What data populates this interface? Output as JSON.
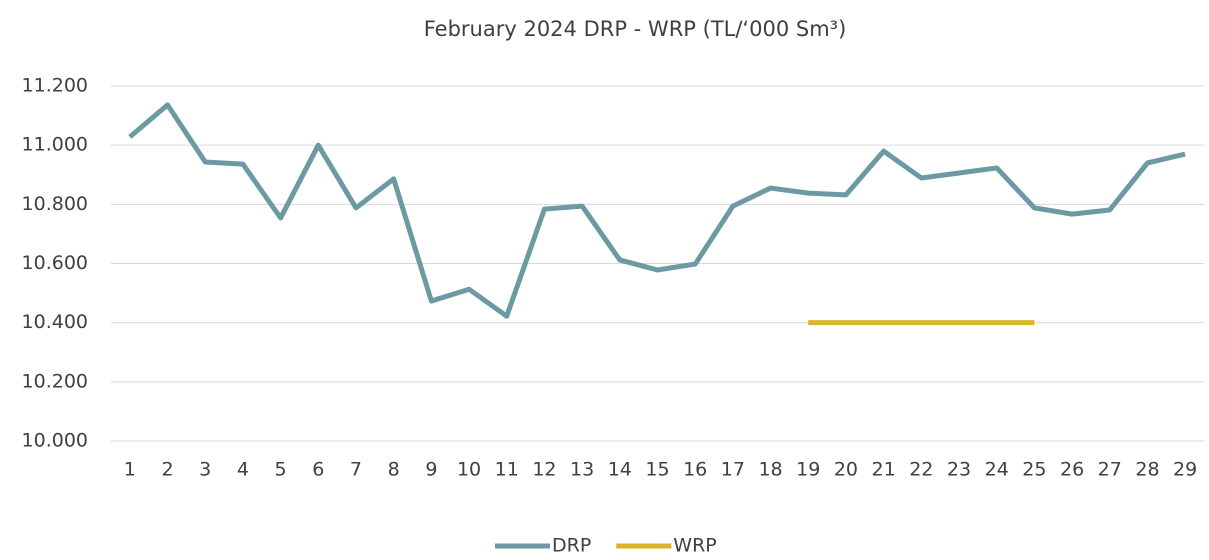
{
  "chart_data": {
    "type": "line",
    "title": "February 2024 DRP - WRP (TL/‘000 Sm³)",
    "categories": [
      "1",
      "2",
      "3",
      "4",
      "5",
      "6",
      "7",
      "8",
      "9",
      "10",
      "11",
      "12",
      "13",
      "14",
      "15",
      "16",
      "17",
      "18",
      "19",
      "20",
      "21",
      "22",
      "23",
      "24",
      "25",
      "26",
      "27",
      "28",
      "29"
    ],
    "series": [
      {
        "name": "DRP",
        "color": "#6b9aa3",
        "values": [
          11028,
          11136,
          10943,
          10936,
          10754,
          11000,
          10788,
          10886,
          10473,
          10513,
          10422,
          10784,
          10794,
          10612,
          10578,
          10598,
          10794,
          10855,
          10838,
          10832,
          10980,
          10889,
          10906,
          10923,
          10788,
          10767,
          10781,
          10940,
          10970
        ]
      },
      {
        "name": "WRP",
        "color": "#d9b52c",
        "values": [
          null,
          null,
          null,
          null,
          null,
          null,
          null,
          null,
          null,
          null,
          null,
          null,
          null,
          null,
          null,
          null,
          null,
          null,
          10400,
          10400,
          10400,
          10400,
          10400,
          10400,
          10400,
          null,
          null,
          null,
          null
        ]
      }
    ],
    "ylim": [
      10000,
      11200
    ],
    "yticks": [
      {
        "value": 10000,
        "label": "10.000"
      },
      {
        "value": 10200,
        "label": "10.200"
      },
      {
        "value": 10400,
        "label": "10.400"
      },
      {
        "value": 10600,
        "label": "10.600"
      },
      {
        "value": 10800,
        "label": "10.800"
      },
      {
        "value": 11000,
        "label": "11.000"
      },
      {
        "value": 11200,
        "label": "11.200"
      }
    ],
    "grid": true,
    "legend": "bottom"
  }
}
